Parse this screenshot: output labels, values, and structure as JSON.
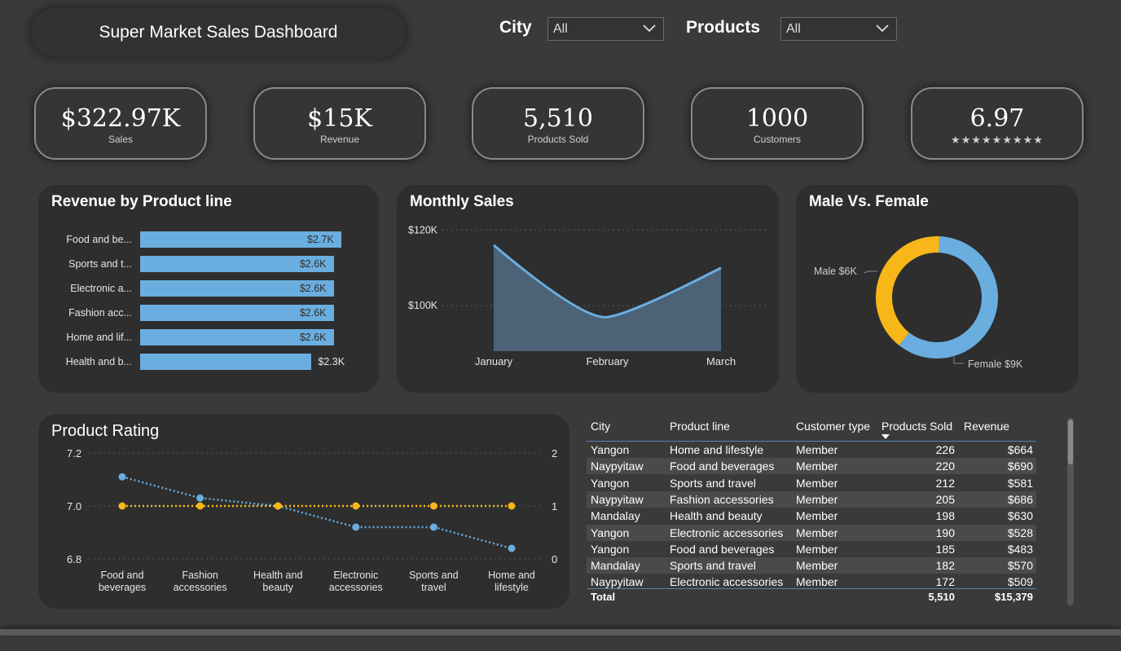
{
  "header": {
    "title": "Super Market Sales Dashboard",
    "city_label": "City",
    "city_value": "All",
    "products_label": "Products",
    "products_value": "All"
  },
  "kpis": [
    {
      "value": "$322.97K",
      "label": "Sales"
    },
    {
      "value": "$15K",
      "label": "Revenue"
    },
    {
      "value": "5,510",
      "label": "Products Sold"
    },
    {
      "value": "1000",
      "label": "Customers"
    },
    {
      "value": "6.97",
      "label": "★★★★★★★★★"
    }
  ],
  "colors": {
    "background": "#3a3a3a",
    "card": "#2e2e2e",
    "blue": "#6aaee0",
    "yellow": "#f7b718",
    "area_fill": "#4b6277"
  },
  "chart_data": [
    {
      "type": "bar",
      "title": "Revenue by Product line",
      "categories": [
        "Food and be...",
        "Sports and t...",
        "Electronic a...",
        "Fashion acc...",
        "Home and lif...",
        "Health and b..."
      ],
      "values": [
        2.7,
        2.6,
        2.6,
        2.6,
        2.6,
        2.3
      ],
      "value_labels": [
        "$2.7K",
        "$2.6K",
        "$2.6K",
        "$2.6K",
        "$2.6K",
        "$2.3K"
      ],
      "orientation": "horizontal",
      "color": "#6aaee0"
    },
    {
      "type": "area",
      "title": "Monthly Sales",
      "categories": [
        "January",
        "February",
        "March"
      ],
      "values": [
        116,
        97,
        110
      ],
      "unit": "$K",
      "y_ticks": [
        "$120K",
        "$100K"
      ],
      "y_tick_values": [
        120,
        100
      ],
      "ylim": [
        88,
        122
      ],
      "grid": true
    },
    {
      "type": "pie",
      "title": "Male Vs. Female",
      "donut": true,
      "labels": [
        "Male $6K",
        "Female $9K"
      ],
      "values": [
        6,
        9
      ],
      "colors": [
        "#f7b718",
        "#6aaee0"
      ]
    },
    {
      "type": "line",
      "title": "Product Rating",
      "categories": [
        "Food and|beverages",
        "Fashion|accessories",
        "Health and|beauty",
        "Electronic|accessories",
        "Sports and|travel",
        "Home and|lifestyle"
      ],
      "series": [
        {
          "values": [
            7.11,
            7.03,
            7.0,
            6.92,
            6.92,
            6.84
          ],
          "axis": "left",
          "color": "#6aaee0"
        },
        {
          "values": [
            1,
            1,
            1,
            1,
            1,
            1
          ],
          "axis": "right",
          "color": "#f7b718"
        }
      ],
      "y_left_ticks": [
        "7.2",
        "7.0",
        "6.8"
      ],
      "y_left_range": [
        6.8,
        7.2
      ],
      "y_right_ticks": [
        "2",
        "1",
        "0"
      ],
      "y_right_range": [
        0,
        2
      ],
      "grid": true
    }
  ],
  "table": {
    "columns": [
      "City",
      "Product line",
      "Customer type",
      "Products Sold",
      "Revenue"
    ],
    "rows": [
      [
        "Yangon",
        "Home and lifestyle",
        "Member",
        "226",
        "$664"
      ],
      [
        "Naypyitaw",
        "Food and beverages",
        "Member",
        "220",
        "$690"
      ],
      [
        "Yangon",
        "Sports and travel",
        "Member",
        "212",
        "$581"
      ],
      [
        "Naypyitaw",
        "Fashion accessories",
        "Member",
        "205",
        "$686"
      ],
      [
        "Mandalay",
        "Health and beauty",
        "Member",
        "198",
        "$630"
      ],
      [
        "Yangon",
        "Electronic accessories",
        "Member",
        "190",
        "$528"
      ],
      [
        "Yangon",
        "Food and beverages",
        "Member",
        "185",
        "$483"
      ],
      [
        "Mandalay",
        "Sports and travel",
        "Member",
        "182",
        "$570"
      ],
      [
        "Naypyitaw",
        "Electronic accessories",
        "Member",
        "172",
        "$509"
      ]
    ],
    "total_label": "Total",
    "total_sold": "5,510",
    "total_revenue": "$15,379"
  }
}
